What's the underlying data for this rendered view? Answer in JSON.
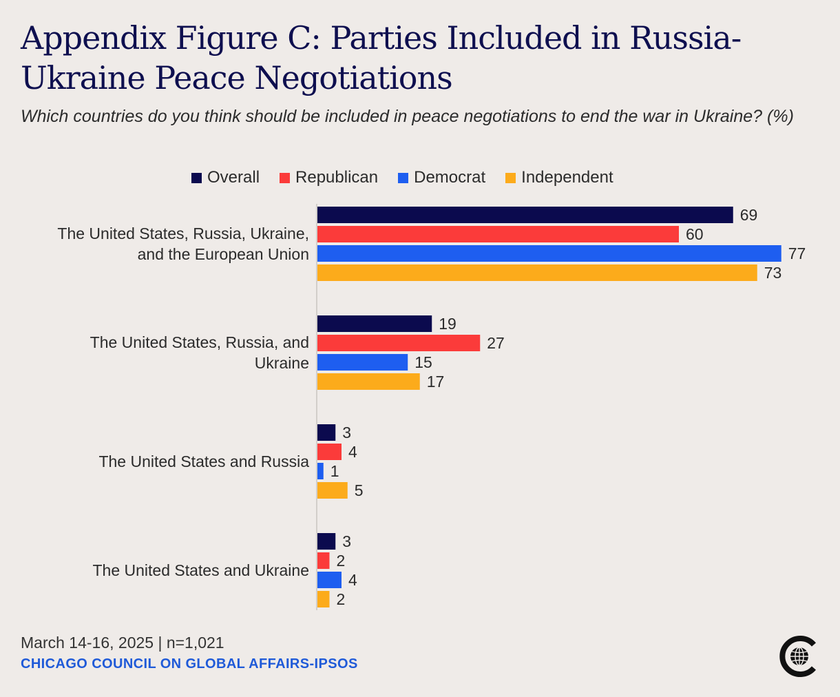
{
  "title": "Appendix Figure C: Parties Included in Russia-Ukraine Peace Negotiations",
  "subtitle": "Which countries do you think should be included in peace negotiations to end the war in Ukraine? (%)",
  "footer": {
    "date_line": "March 14-16, 2025 | n=1,021",
    "source": "CHICAGO COUNCIL ON GLOBAL AFFAIRS-IPSOS"
  },
  "logo": {
    "icon": "chicago-council-globe-logo"
  },
  "chart_data": {
    "type": "bar",
    "orientation": "horizontal",
    "categories": [
      [
        "The United States, Russia, Ukraine,",
        "and the European Union"
      ],
      [
        "The United States, Russia, and",
        "Ukraine"
      ],
      [
        "The United States and Russia"
      ],
      [
        "The United States and Ukraine"
      ]
    ],
    "series": [
      {
        "name": "Overall",
        "color": "#0b0a4e",
        "values": [
          69,
          19,
          3,
          3
        ]
      },
      {
        "name": "Republican",
        "color": "#fb3b3a",
        "values": [
          60,
          27,
          4,
          2
        ]
      },
      {
        "name": "Democrat",
        "color": "#1e5ef0",
        "values": [
          77,
          15,
          1,
          4
        ]
      },
      {
        "name": "Independent",
        "color": "#fcab1b",
        "values": [
          73,
          17,
          5,
          2
        ]
      }
    ],
    "xlim": [
      0,
      80
    ],
    "grid": false,
    "legend_position": "top",
    "data_labels": true
  }
}
